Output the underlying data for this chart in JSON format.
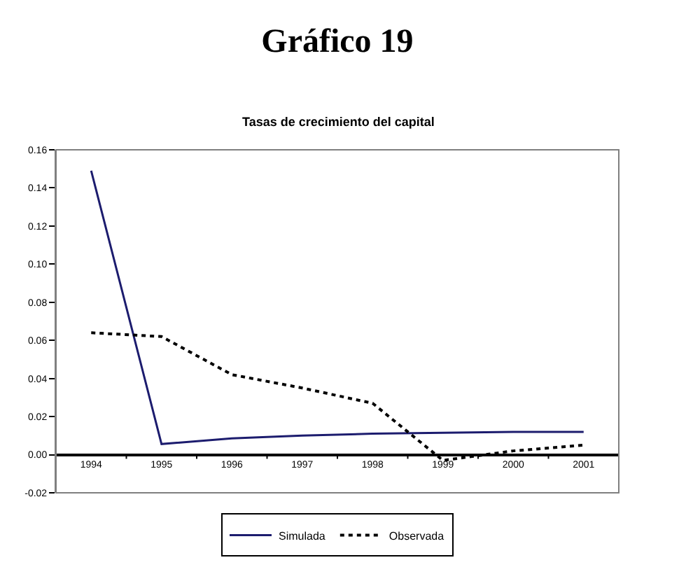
{
  "chart_data": {
    "type": "line",
    "title": "Gráfico 19",
    "subtitle": "Tasas de crecimiento del capital",
    "categories": [
      "1994",
      "1995",
      "1996",
      "1997",
      "1998",
      "1999",
      "2000",
      "2001"
    ],
    "series": [
      {
        "name": "Simulada",
        "color": "#1c1c6e",
        "line_style": "solid",
        "values": [
          0.149,
          0.0056,
          0.0086,
          0.01,
          0.011,
          0.0115,
          0.012,
          0.012
        ]
      },
      {
        "name": "Observada",
        "color": "#000000",
        "line_style": "dotted",
        "values": [
          0.064,
          0.062,
          0.042,
          0.035,
          0.027,
          -0.003,
          0.002,
          0.005
        ]
      }
    ],
    "ylim": [
      -0.02,
      0.16
    ],
    "yticks": [
      {
        "value": -0.02,
        "label": "-0.02"
      },
      {
        "value": 0,
        "label": "0.00"
      },
      {
        "value": 0.02,
        "label": "0.02"
      },
      {
        "value": 0.04,
        "label": "0.04"
      },
      {
        "value": 0.06,
        "label": "0.06"
      },
      {
        "value": 0.08,
        "label": "0.08"
      },
      {
        "value": 0.1,
        "label": "0.10"
      },
      {
        "value": 0.12,
        "label": "0.12"
      },
      {
        "value": 0.14,
        "label": "0.14"
      },
      {
        "value": 0.16,
        "label": "0.16"
      }
    ],
    "grid": false,
    "legend": "bottom",
    "marker": "none"
  }
}
